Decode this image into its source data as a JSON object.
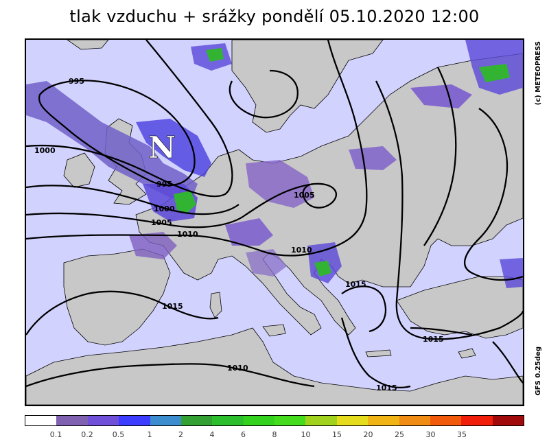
{
  "title": "tlak vzduchu + srážky pondělí 05.10.2020 12:00",
  "copyright": "(c) METEOPRESS",
  "model": "GFS 0.25deg",
  "low_marker": "N",
  "colors": {
    "land": "#c8c8c8",
    "sea": "#d2d2ff",
    "precip_light": "#8c6cd0",
    "precip_mid": "#5544e0",
    "precip_high": "#3d3dff",
    "precip_green": "#32b432"
  },
  "isobar_labels": [
    "995",
    "1000",
    "995",
    "1000",
    "1005",
    "1010",
    "1005",
    "1010",
    "1015",
    "1015",
    "1015",
    "1010",
    "1015"
  ],
  "legend": {
    "colors": [
      "#ffffff",
      "#8060b0",
      "#7050d8",
      "#3d3dff",
      "#3c8cd0",
      "#32a032",
      "#2dbe2d",
      "#32d21e",
      "#46dc1e",
      "#a0d21e",
      "#e6dc1e",
      "#f0b414",
      "#f08c14",
      "#f05a0a",
      "#f01e0a",
      "#a00a0a"
    ],
    "labels": [
      "0.1",
      "0.2",
      "0.5",
      "1",
      "2",
      "4",
      "6",
      "8",
      "10",
      "15",
      "20",
      "25",
      "30",
      "35"
    ]
  }
}
